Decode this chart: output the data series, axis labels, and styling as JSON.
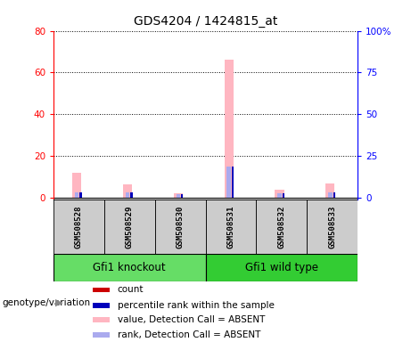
{
  "title": "GDS4204 / 1424815_at",
  "samples": [
    "GSM508528",
    "GSM508529",
    "GSM508530",
    "GSM508531",
    "GSM508532",
    "GSM508533"
  ],
  "groups": [
    {
      "label": "Gfi1 knockout",
      "samples": [
        0,
        1,
        2
      ],
      "color": "#66dd66"
    },
    {
      "label": "Gfi1 wild type",
      "samples": [
        3,
        4,
        5
      ],
      "color": "#33cc33"
    }
  ],
  "group_label": "genotype/variation",
  "count_values": [
    0,
    0,
    0,
    0,
    0,
    0
  ],
  "percentile_rank_values": [
    2.5,
    2.5,
    1.5,
    15,
    2,
    2.5
  ],
  "absent_value_values": [
    12,
    6.5,
    2,
    66,
    4,
    7
  ],
  "absent_rank_values": [
    2.5,
    2.5,
    1.5,
    15,
    2,
    2.5
  ],
  "left_yticks": [
    0,
    20,
    40,
    60,
    80
  ],
  "right_yticklabels": [
    "0",
    "25",
    "50",
    "75",
    "100%"
  ],
  "left_ylim": [
    -1,
    80
  ],
  "right_ylim": [
    -1.25,
    100
  ],
  "color_count": "#cc0000",
  "color_percentile": "#0000bb",
  "color_absent_value": "#ffb6c1",
  "color_absent_rank": "#aaaaee",
  "legend_items": [
    {
      "color": "#cc0000",
      "label": "count"
    },
    {
      "color": "#0000bb",
      "label": "percentile rank within the sample"
    },
    {
      "color": "#ffb6c1",
      "label": "value, Detection Call = ABSENT"
    },
    {
      "color": "#aaaaee",
      "label": "rank, Detection Call = ABSENT"
    }
  ],
  "plot_bg_color": "#ffffff",
  "sample_box_color": "#cccccc",
  "title_fontsize": 10,
  "tick_fontsize": 7.5,
  "label_fontsize": 8
}
